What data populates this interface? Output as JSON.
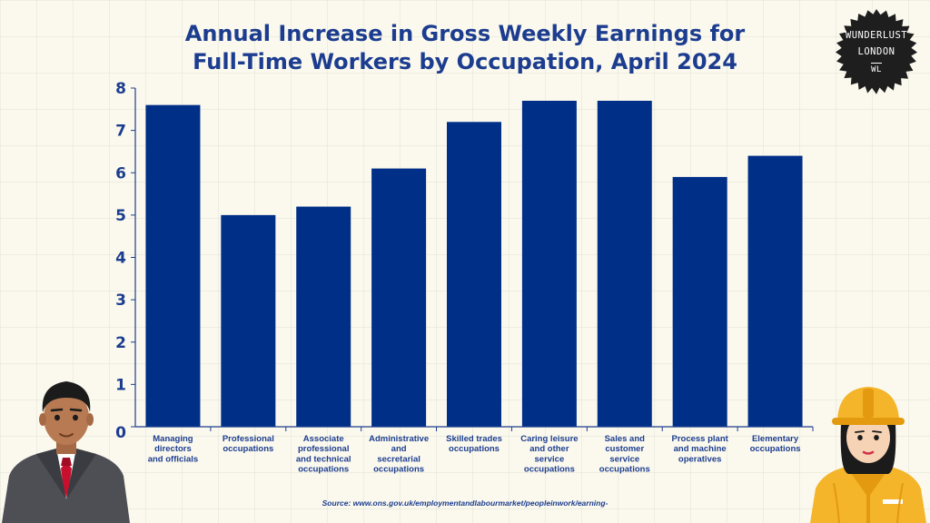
{
  "title_lines": [
    "Annual Increase in Gross Weekly Earnings for",
    "Full-Time Workers by Occupation, April 2024"
  ],
  "logo": {
    "line1": "WUNDERLUST",
    "line2": "LONDON",
    "monogram": "WL"
  },
  "source": "Source: www.ons.gov.uk/employmentandlabourmarket/peopleinwork/earning-",
  "colors": {
    "bar": "#002f87",
    "title": "#1c3d8f",
    "background": "#fbf9ee",
    "logo": "#1e1e1e"
  },
  "chart_data": {
    "type": "bar",
    "title": "Annual Increase in Gross Weekly Earnings for Full-Time Workers by Occupation, April 2024",
    "xlabel": "",
    "ylabel": "",
    "ylim": [
      0,
      8
    ],
    "yticks": [
      "0",
      "1",
      "2",
      "3",
      "4",
      "5",
      "6",
      "7",
      "8"
    ],
    "grid": false,
    "categories": [
      [
        "Managing",
        "directors",
        "and officials"
      ],
      [
        "Professional",
        "occupations"
      ],
      [
        "Associate",
        "professional",
        "and technical",
        "occupations"
      ],
      [
        "Administrative",
        "and",
        "secretarial",
        "occupations"
      ],
      [
        "Skilled trades",
        "occupations"
      ],
      [
        "Caring leisure",
        "and other",
        "service",
        "occupations"
      ],
      [
        "Sales and",
        "customer",
        "service",
        "occupations"
      ],
      [
        "Process plant",
        "and machine",
        "operatives"
      ],
      [
        "Elementary",
        "occupations"
      ]
    ],
    "values": [
      7.6,
      5.0,
      5.2,
      6.1,
      7.2,
      7.7,
      7.7,
      5.9,
      6.4
    ]
  }
}
